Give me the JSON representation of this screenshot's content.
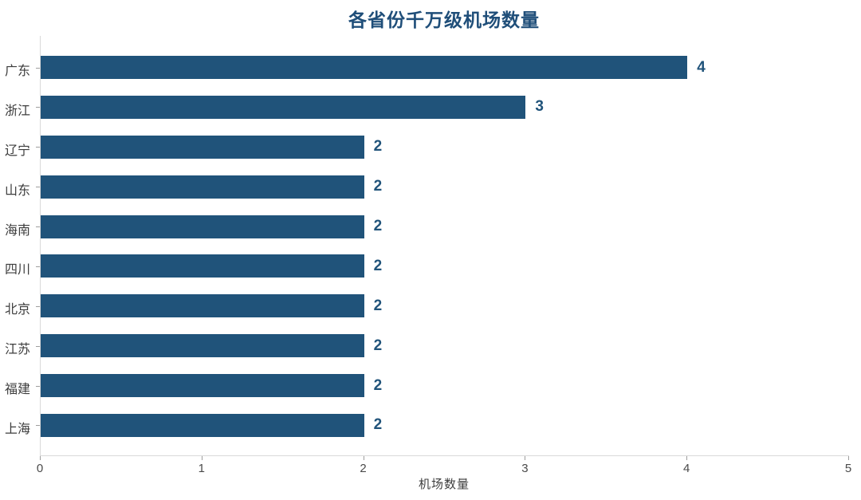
{
  "chart_data": {
    "type": "bar",
    "orientation": "horizontal",
    "title": "各省份千万级机场数量",
    "xlabel": "机场数量",
    "categories": [
      "广东",
      "浙江",
      "辽宁",
      "山东",
      "海南",
      "四川",
      "北京",
      "江苏",
      "福建",
      "上海"
    ],
    "values": [
      4,
      3,
      2,
      2,
      2,
      2,
      2,
      2,
      2,
      2
    ],
    "xlim": [
      0,
      5
    ],
    "x_ticks": [
      "0",
      "1",
      "2",
      "3",
      "4",
      "5"
    ],
    "grid": false,
    "legend": null,
    "colors": {
      "bar": "#20537A",
      "value_label": "#20537A",
      "title": "#1F4E79",
      "axis_line": "#D9D9D9",
      "tick_mark": "#9E9E9E",
      "tick_label": "#4A4A4A",
      "category_label": "#3D3D3D",
      "xlabel": "#3D3D3D"
    }
  }
}
